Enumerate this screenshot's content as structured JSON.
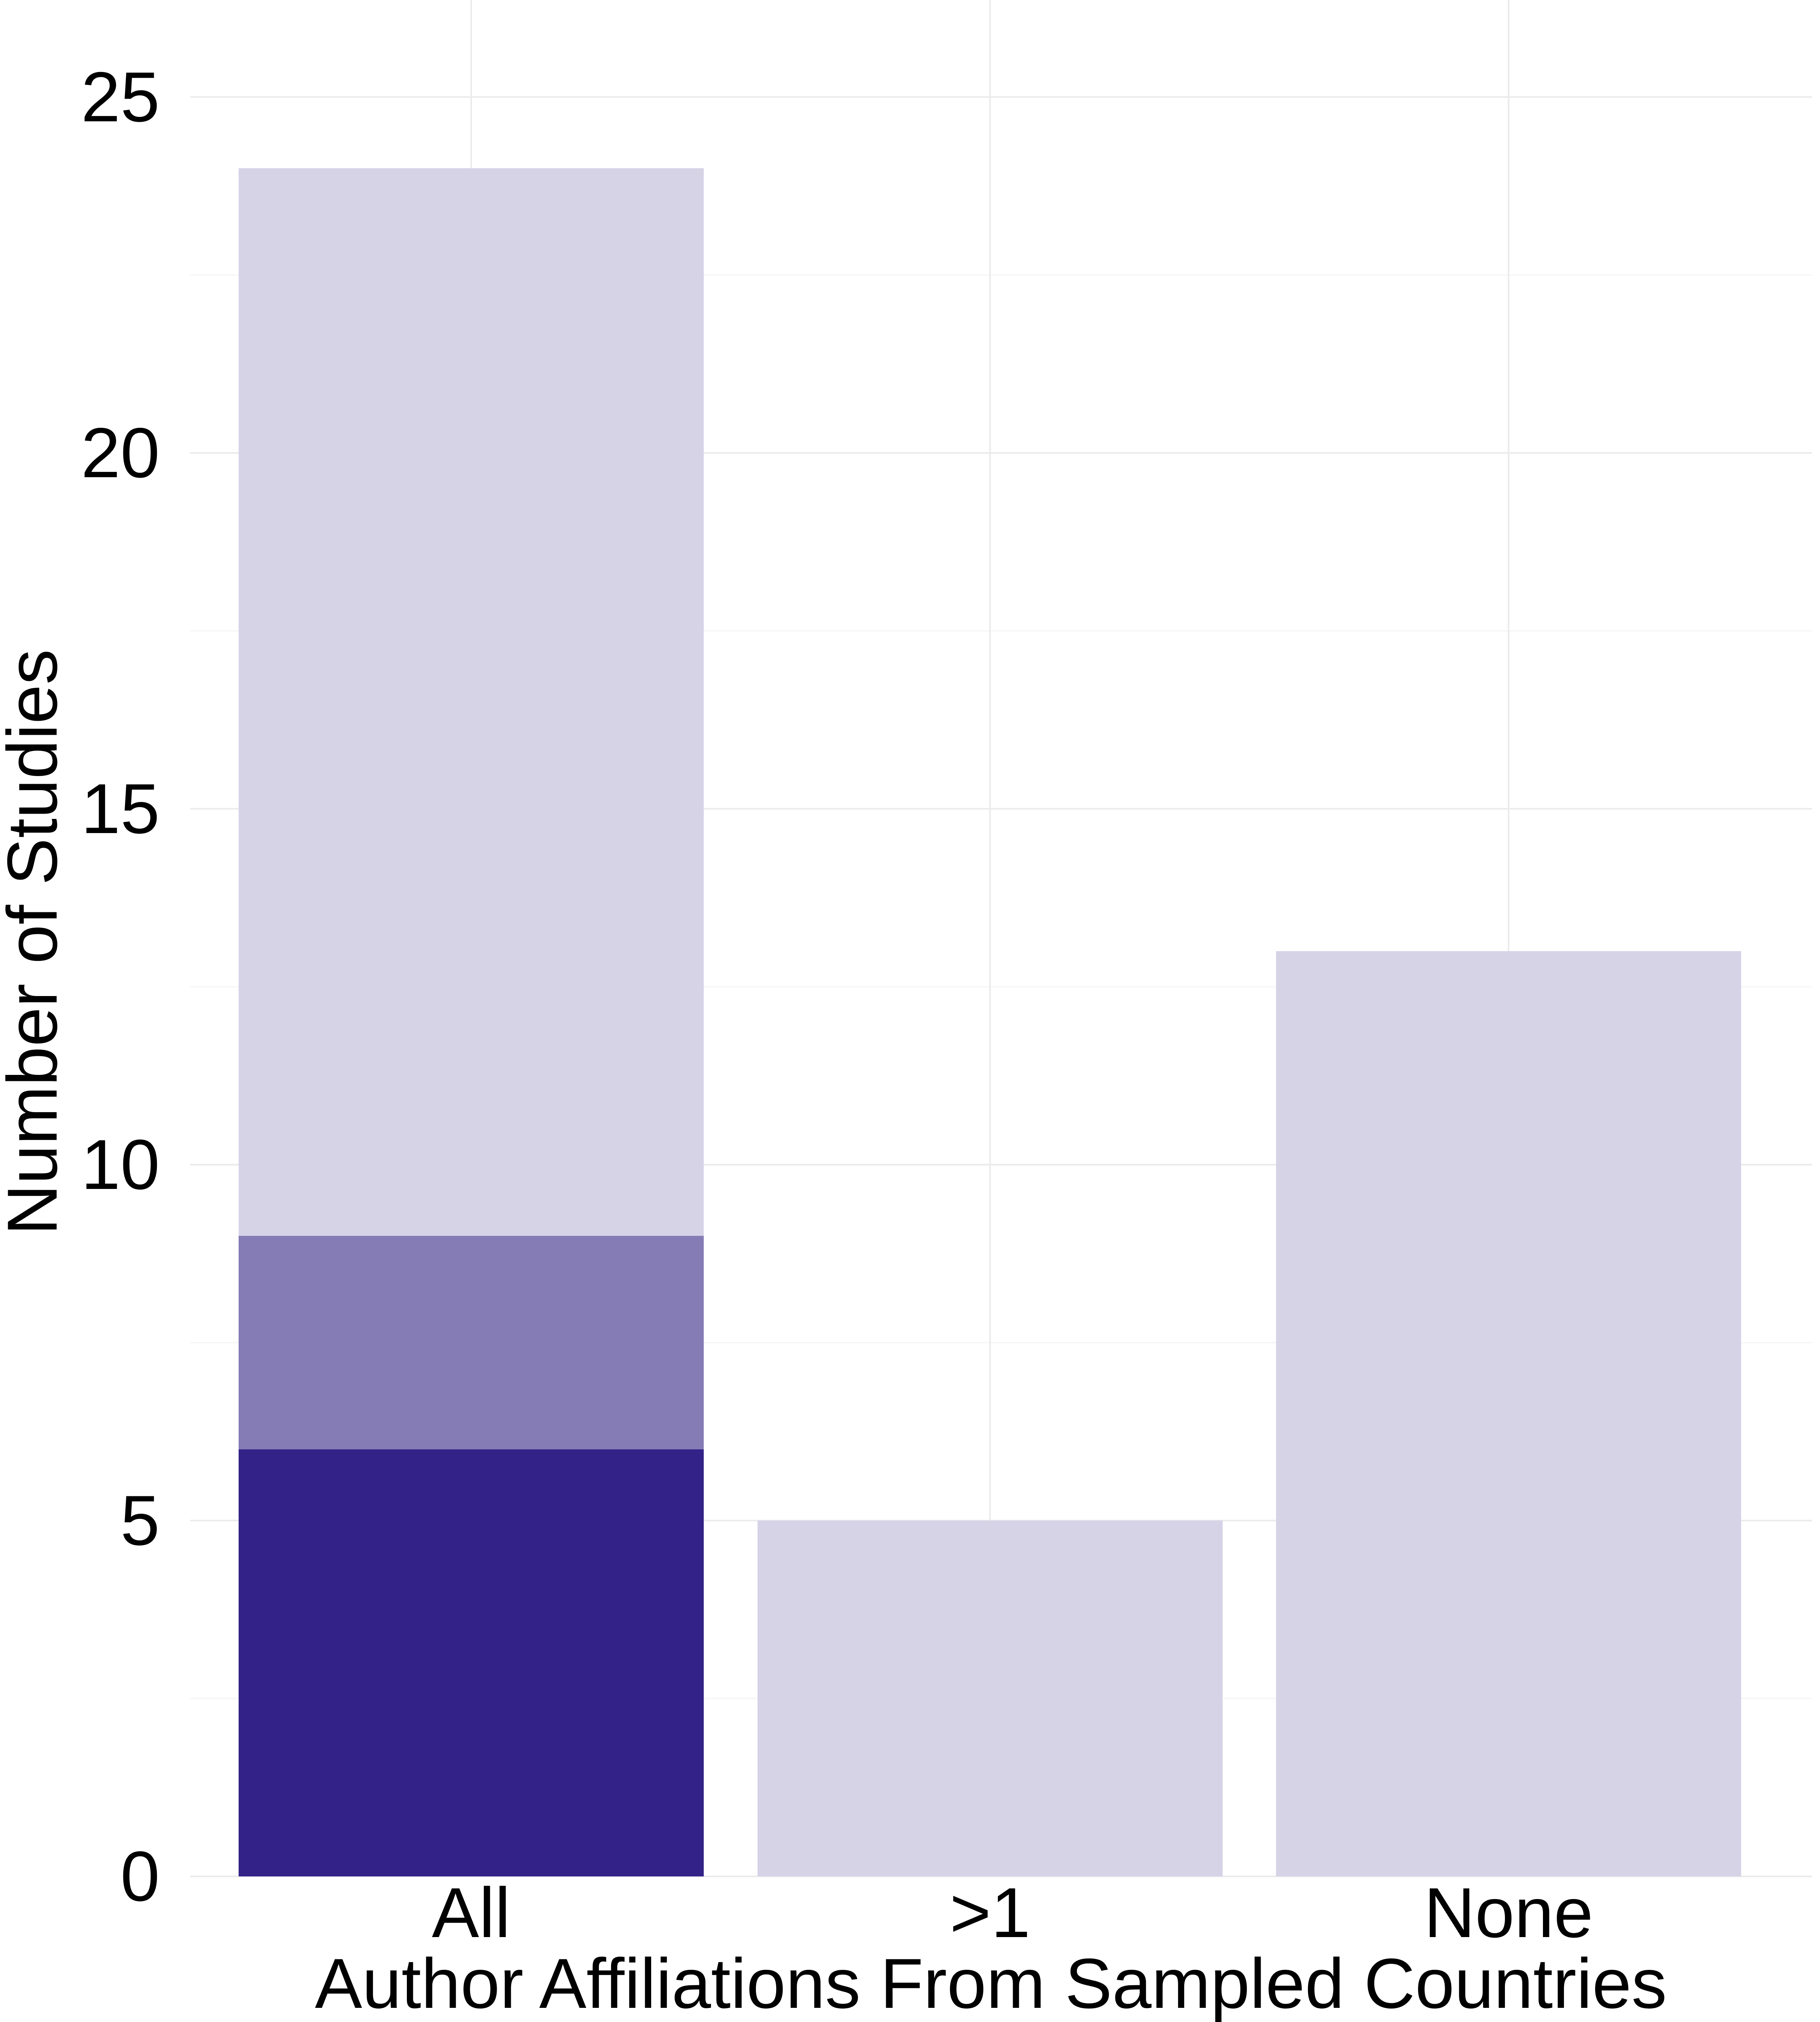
{
  "chart_data": {
    "type": "bar",
    "stacked": true,
    "categories": [
      "All",
      ">1",
      "None"
    ],
    "series": [
      {
        "values": [
          6,
          0,
          0
        ],
        "color": "#332288"
      },
      {
        "values": [
          3,
          0,
          0
        ],
        "color": "#857BB5"
      },
      {
        "values": [
          15,
          5,
          13
        ],
        "color": "#D6D3E7"
      }
    ],
    "title": "",
    "xlabel": "Author Affiliations From Sampled Countries",
    "ylabel": "Number of Studies",
    "ylim": [
      0,
      25.5
    ],
    "yticks": [
      0,
      5,
      10,
      15,
      20,
      25
    ],
    "grid": true,
    "legend": "none"
  }
}
